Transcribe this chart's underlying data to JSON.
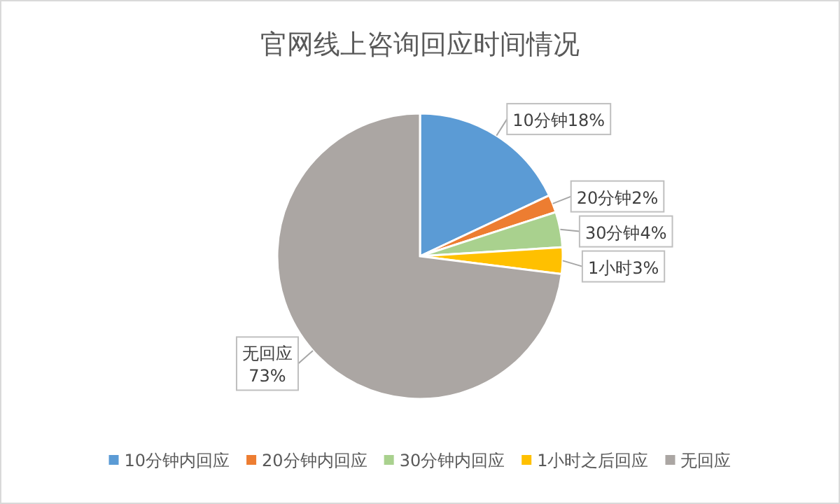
{
  "chart_data": {
    "type": "pie",
    "title": "官网线上咨询回应时间情况",
    "categories": [
      "10分钟内回应",
      "20分钟内回应",
      "30分钟内回应",
      "1小时之后回应",
      "无回应"
    ],
    "values": [
      18,
      2,
      4,
      3,
      73
    ],
    "colors": [
      "#5b9bd5",
      "#ed7d31",
      "#a9d18e",
      "#ffc000",
      "#aba6a3"
    ],
    "value_labels": [
      "10分钟18%",
      "20分钟2%",
      "30分钟4%",
      "1小时3%",
      "无回应\n73%"
    ],
    "legend": "bottom"
  }
}
